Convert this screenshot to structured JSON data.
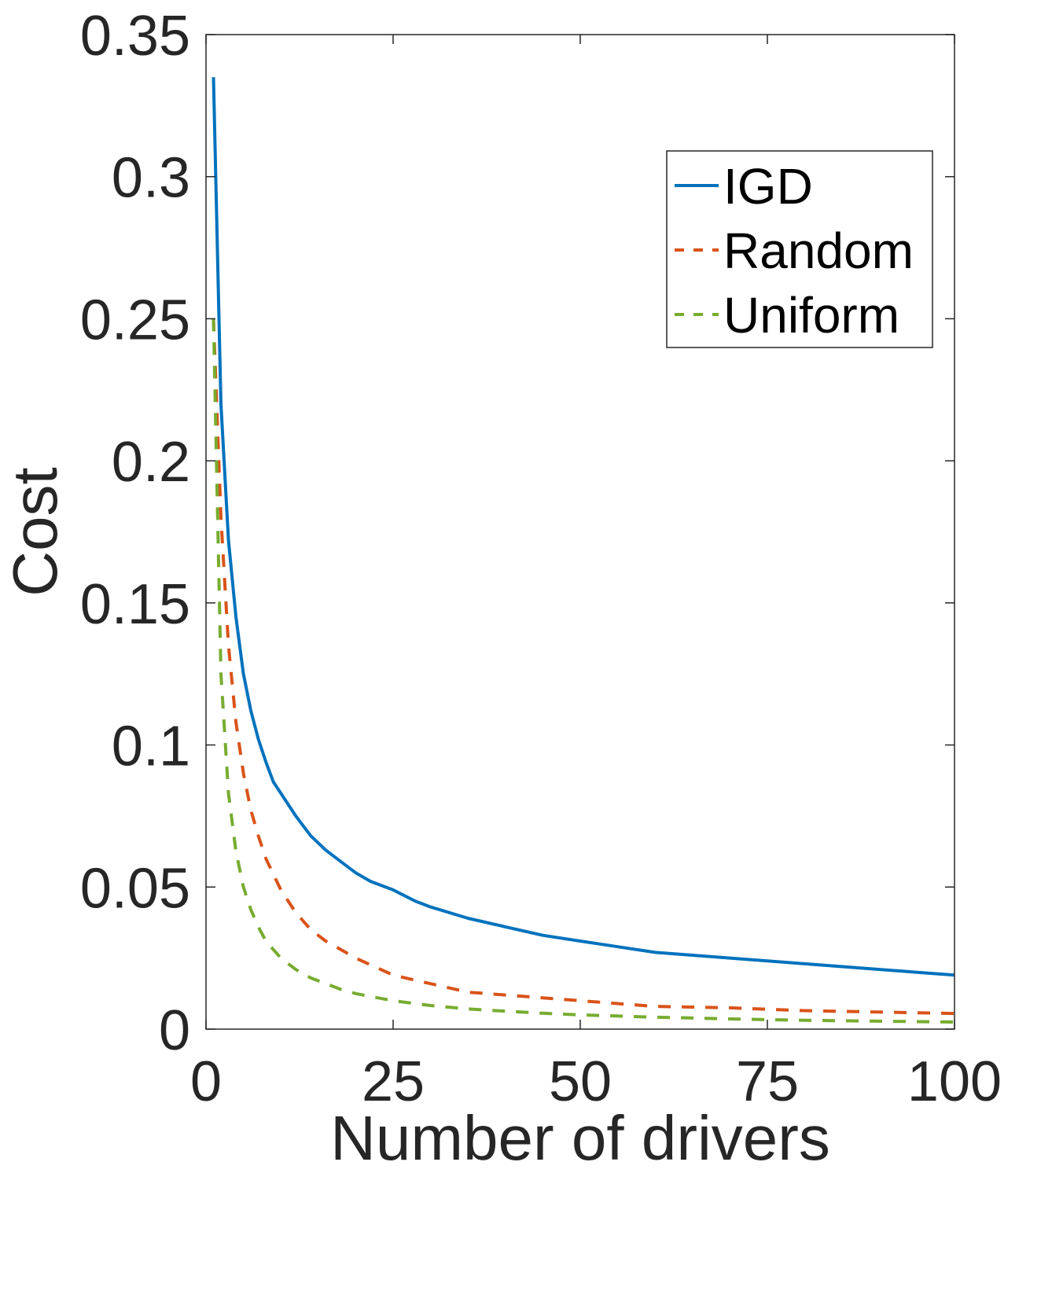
{
  "chart_data": {
    "type": "line",
    "title": "",
    "xlabel": "Number of drivers",
    "ylabel": "Cost",
    "xlim": [
      0,
      100
    ],
    "ylim": [
      0,
      0.35
    ],
    "xticks": [
      0,
      25,
      50,
      75,
      100
    ],
    "xtick_labels": [
      "0",
      "25",
      "50",
      "75",
      "100"
    ],
    "yticks": [
      0,
      0.05,
      0.1,
      0.15,
      0.2,
      0.25,
      0.3,
      0.35
    ],
    "ytick_labels": [
      "0",
      "0.05",
      "0.1",
      "0.15",
      "0.2",
      "0.25",
      "0.3",
      "0.35"
    ],
    "grid": false,
    "legend_position": "top-right",
    "series": [
      {
        "name": "IGD",
        "color": "#0072BD",
        "style": "solid",
        "x": [
          1,
          2,
          3,
          4,
          5,
          6,
          7,
          8,
          9,
          10,
          12,
          14,
          16,
          18,
          20,
          22,
          25,
          28,
          30,
          35,
          40,
          45,
          50,
          55,
          60,
          65,
          70,
          75,
          80,
          85,
          90,
          95,
          100
        ],
        "y": [
          0.335,
          0.22,
          0.172,
          0.145,
          0.125,
          0.112,
          0.102,
          0.094,
          0.087,
          0.083,
          0.075,
          0.068,
          0.063,
          0.059,
          0.055,
          0.052,
          0.049,
          0.045,
          0.043,
          0.039,
          0.036,
          0.033,
          0.031,
          0.029,
          0.027,
          0.026,
          0.025,
          0.024,
          0.023,
          0.022,
          0.021,
          0.02,
          0.019
        ]
      },
      {
        "name": "Random",
        "color": "#D95319",
        "style": "dashed",
        "x": [
          1,
          2,
          3,
          4,
          5,
          6,
          7,
          8,
          10,
          12,
          14,
          16,
          18,
          20,
          25,
          30,
          35,
          40,
          45,
          50,
          60,
          70,
          80,
          90,
          100
        ],
        "y": [
          0.25,
          0.18,
          0.135,
          0.108,
          0.09,
          0.077,
          0.068,
          0.06,
          0.049,
          0.041,
          0.035,
          0.031,
          0.028,
          0.025,
          0.019,
          0.016,
          0.013,
          0.012,
          0.011,
          0.01,
          0.008,
          0.0075,
          0.0065,
          0.006,
          0.0055
        ]
      },
      {
        "name": "Uniform",
        "color": "#77AC30",
        "style": "dashed",
        "x": [
          1,
          2,
          3,
          4,
          5,
          6,
          7,
          8,
          10,
          12,
          14,
          16,
          18,
          20,
          25,
          30,
          35,
          40,
          45,
          50,
          60,
          70,
          80,
          90,
          100
        ],
        "y": [
          0.25,
          0.125,
          0.083,
          0.0625,
          0.05,
          0.042,
          0.036,
          0.031,
          0.025,
          0.021,
          0.018,
          0.016,
          0.014,
          0.0125,
          0.01,
          0.0083,
          0.0071,
          0.0063,
          0.0056,
          0.005,
          0.0042,
          0.0036,
          0.0031,
          0.0028,
          0.0025
        ]
      }
    ]
  }
}
